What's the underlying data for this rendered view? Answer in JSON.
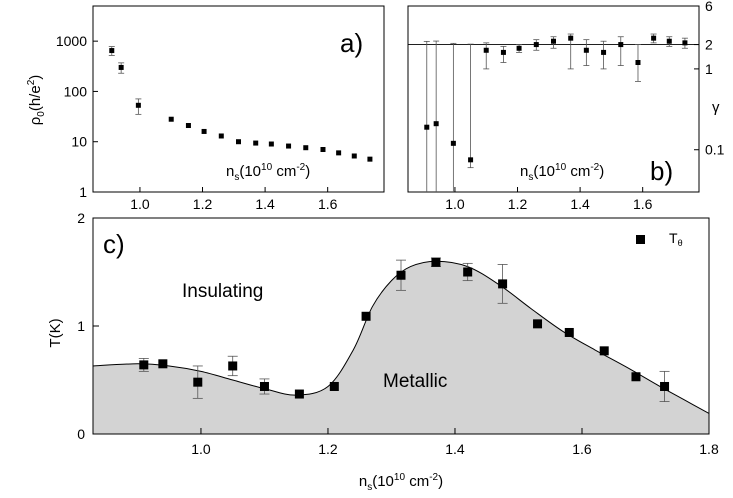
{
  "chart_data": [
    {
      "panel": "a)",
      "type": "scatter",
      "ylabel": "ρ0(h/e2)",
      "inner_label": "ns(1010 cm-2)",
      "xlim": [
        0.85,
        1.78
      ],
      "ylim": [
        1,
        5000
      ],
      "yscale": "log",
      "x_ticks": [
        "1.0",
        "1.2",
        "1.4",
        "1.6"
      ],
      "y_ticks": [
        "1",
        "10",
        "100",
        "1000"
      ],
      "series": [
        {
          "x": [
            0.91,
            0.94,
            0.995,
            1.1,
            1.155,
            1.205,
            1.26,
            1.315,
            1.37,
            1.42,
            1.475,
            1.53,
            1.585,
            1.635,
            1.685,
            1.735
          ],
          "y": [
            650,
            300,
            53,
            28,
            21,
            16,
            13,
            10,
            9.4,
            9.0,
            8.2,
            7.6,
            7.0,
            6.0,
            5.2,
            4.5
          ],
          "err_low": [
            130,
            70,
            18,
            0,
            0,
            0,
            0,
            0,
            0,
            0,
            0,
            0,
            0,
            0,
            0,
            0
          ],
          "err_high": [
            130,
            70,
            18,
            0,
            0,
            0,
            0,
            0,
            0,
            0,
            0,
            0,
            0,
            0,
            0,
            0
          ]
        }
      ]
    },
    {
      "panel": "b)",
      "type": "scatter",
      "ylabel": "γ",
      "inner_label": "ns(1010 cm-2)",
      "xlim": [
        0.85,
        1.78
      ],
      "ylim": [
        0.03,
        6
      ],
      "yscale": "log",
      "x_ticks": [
        "1.0",
        "1.2",
        "1.4",
        "1.6"
      ],
      "y_ticks": [
        "0.1",
        "1",
        "2",
        "6"
      ],
      "hline": 2,
      "series": [
        {
          "x": [
            0.91,
            0.94,
            0.995,
            1.05,
            1.1,
            1.155,
            1.205,
            1.26,
            1.315,
            1.37,
            1.42,
            1.475,
            1.53,
            1.585,
            1.635,
            1.685,
            1.735
          ],
          "y": [
            0.19,
            0.21,
            0.12,
            0.075,
            1.7,
            1.6,
            1.8,
            2.0,
            2.2,
            2.4,
            1.7,
            1.6,
            2.0,
            1.2,
            2.4,
            2.2,
            2.1
          ],
          "err_low": [
            0.16,
            0.18,
            0.1,
            0.015,
            0.7,
            0.4,
            0.2,
            0.3,
            0.4,
            1.4,
            0.6,
            0.6,
            0.9,
            0.5,
            0.3,
            0.3,
            0.3
          ],
          "err_high": [
            2.0,
            2.0,
            1.95,
            1.95,
            0.4,
            0.3,
            0.2,
            0.3,
            0.3,
            0.3,
            0.6,
            0.6,
            0.5,
            0.8,
            0.3,
            0.3,
            0.3
          ]
        }
      ]
    },
    {
      "panel": "c)",
      "type": "scatter",
      "xlabel": "ns(1010 cm-2)",
      "ylabel": "T(K)",
      "xlim": [
        0.83,
        1.8
      ],
      "ylim": [
        0,
        2
      ],
      "x_ticks": [
        "1.0",
        "1.2",
        "1.4",
        "1.6",
        "1.8"
      ],
      "y_ticks": [
        "0",
        "1",
        "2"
      ],
      "regions": [
        "Insulating",
        "Metallic"
      ],
      "legend": "Tθ",
      "legend_placement": "top-right",
      "series": [
        {
          "name": "Tθ",
          "x": [
            0.91,
            0.94,
            0.995,
            1.05,
            1.1,
            1.155,
            1.21,
            1.26,
            1.315,
            1.37,
            1.42,
            1.475,
            1.53,
            1.58,
            1.635,
            1.685,
            1.73
          ],
          "y": [
            0.64,
            0.65,
            0.48,
            0.63,
            0.44,
            0.37,
            0.44,
            1.09,
            1.47,
            1.59,
            1.5,
            1.39,
            1.02,
            0.94,
            0.77,
            0.53,
            0.44
          ],
          "err": [
            0.06,
            0.0,
            0.15,
            0.09,
            0.07,
            0.0,
            0.0,
            0.0,
            0.14,
            0.04,
            0.08,
            0.18,
            0.0,
            0.0,
            0.0,
            0.0,
            0.14
          ]
        }
      ],
      "curve": {
        "x": [
          0.83,
          0.9,
          0.95,
          1.0,
          1.05,
          1.1,
          1.15,
          1.2,
          1.24,
          1.27,
          1.3,
          1.33,
          1.37,
          1.42,
          1.47,
          1.52,
          1.57,
          1.62,
          1.67,
          1.72,
          1.76,
          1.8
        ],
        "y": [
          0.63,
          0.65,
          0.63,
          0.58,
          0.5,
          0.42,
          0.36,
          0.44,
          0.78,
          1.18,
          1.42,
          1.55,
          1.6,
          1.55,
          1.38,
          1.16,
          0.95,
          0.78,
          0.62,
          0.45,
          0.32,
          0.19
        ]
      }
    }
  ]
}
